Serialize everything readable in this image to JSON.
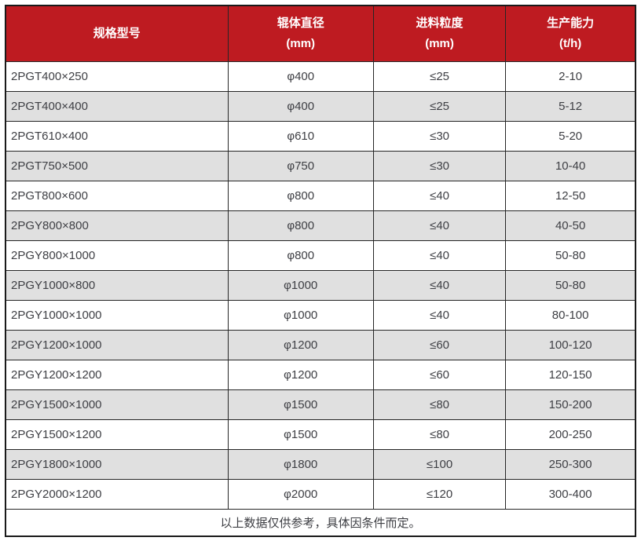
{
  "table": {
    "header": {
      "columns": [
        {
          "label": "规格型号",
          "unit": ""
        },
        {
          "label": "辊体直径",
          "unit": "(mm)"
        },
        {
          "label": "进料粒度",
          "unit": "(mm)"
        },
        {
          "label": "生产能力",
          "unit": "(t/h)"
        }
      ]
    },
    "rows": [
      [
        "2PGT400×250",
        "φ400",
        "≤25",
        "2-10"
      ],
      [
        "2PGT400×400",
        "φ400",
        "≤25",
        "5-12"
      ],
      [
        "2PGT610×400",
        "φ610",
        "≤30",
        "5-20"
      ],
      [
        "2PGT750×500",
        "φ750",
        "≤30",
        "10-40"
      ],
      [
        "2PGT800×600",
        "φ800",
        "≤40",
        "12-50"
      ],
      [
        "2PGY800×800",
        "φ800",
        "≤40",
        "40-50"
      ],
      [
        "2PGY800×1000",
        "φ800",
        "≤40",
        "50-80"
      ],
      [
        "2PGY1000×800",
        "φ1000",
        "≤40",
        "50-80"
      ],
      [
        "2PGY1000×1000",
        "φ1000",
        "≤40",
        "80-100"
      ],
      [
        "2PGY1200×1000",
        "φ1200",
        "≤60",
        "100-120"
      ],
      [
        "2PGY1200×1200",
        "φ1200",
        "≤60",
        "120-150"
      ],
      [
        "2PGY1500×1000",
        "φ1500",
        "≤80",
        "150-200"
      ],
      [
        "2PGY1500×1200",
        "φ1500",
        "≤80",
        "200-250"
      ],
      [
        "2PGY1800×1000",
        "φ1800",
        "≤100",
        "250-300"
      ],
      [
        "2PGY2000×1200",
        "φ2000",
        "≤120",
        "300-400"
      ]
    ],
    "footnote": "以上数据仅供参考，具体因条件而定。"
  },
  "colors": {
    "header_bg": "#be1b21",
    "header_text": "#ffffff",
    "row_bg": "#ffffff",
    "row_alt_bg": "#e0e0e0",
    "text": "#3e3f44",
    "border": "#262626",
    "outer_border": "#1a1a1a"
  }
}
